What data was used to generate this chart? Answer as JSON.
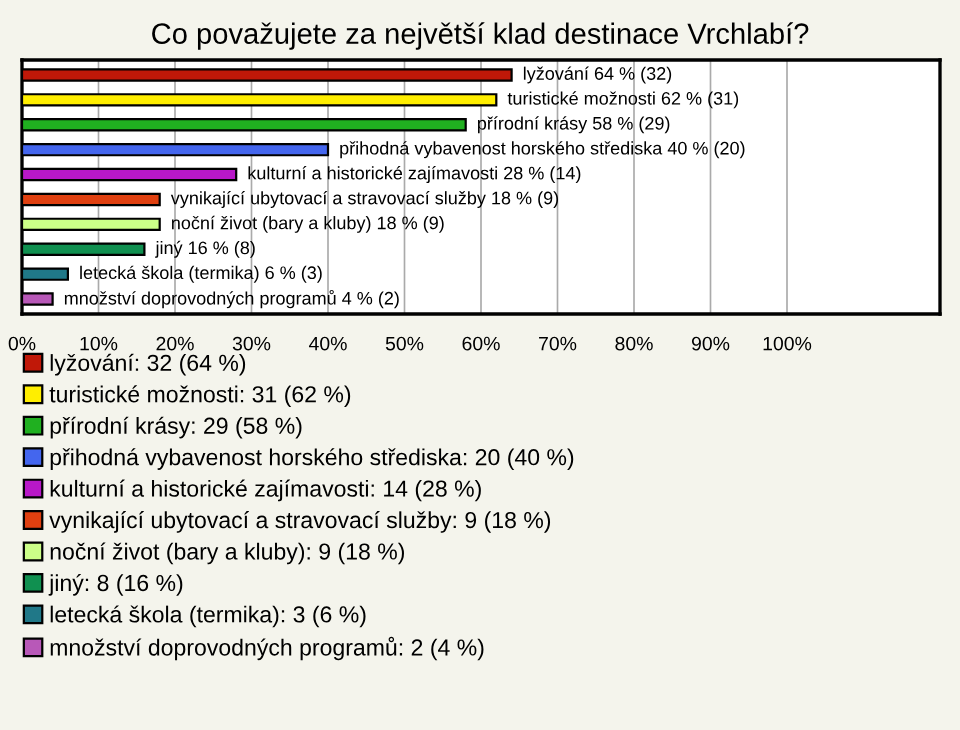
{
  "chart_data": {
    "type": "bar",
    "orientation": "horizontal",
    "title": "Co považujete za největší klad destinace Vrchlabí?",
    "categories": [
      null,
      null,
      null,
      null,
      null,
      null,
      null,
      null,
      null,
      null
    ],
    "series": [
      {
        "name": "lyžování: 32 (64 %)",
        "color": "#c01808",
        "values": [
          64,
          null,
          null,
          null,
          null,
          null,
          null,
          null,
          null,
          null
        ],
        "value_labels": [
          "lyžování 64 % (32)",
          null,
          null,
          null,
          null,
          null,
          null,
          null,
          null,
          null
        ]
      },
      {
        "name": "turistické možnosti: 31 (62 %)",
        "color": "#ffee00",
        "values": [
          null,
          62,
          null,
          null,
          null,
          null,
          null,
          null,
          null,
          null
        ],
        "value_labels": [
          null,
          "turistické možnosti 62 % (31)",
          null,
          null,
          null,
          null,
          null,
          null,
          null,
          null
        ]
      },
      {
        "name": "přírodní krásy: 29 (58 %)",
        "color": "#20b020",
        "values": [
          null,
          null,
          58,
          null,
          null,
          null,
          null,
          null,
          null,
          null
        ],
        "value_labels": [
          null,
          null,
          "přírodní krásy 58 % (29)",
          null,
          null,
          null,
          null,
          null,
          null,
          null
        ]
      },
      {
        "name": "přihodná vybavenost horského střediska: 20 (40 %)",
        "color": "#4466ee",
        "values": [
          null,
          null,
          null,
          40,
          null,
          null,
          null,
          null,
          null,
          null
        ],
        "value_labels": [
          null,
          null,
          null,
          "přihodná vybavenost horského střediska 40 % (20)",
          null,
          null,
          null,
          null,
          null,
          null
        ]
      },
      {
        "name": "kulturní a historické zajímavosti: 14 (28 %)",
        "color": "#b818c8",
        "values": [
          null,
          null,
          null,
          null,
          28,
          null,
          null,
          null,
          null,
          null
        ],
        "value_labels": [
          null,
          null,
          null,
          null,
          "kulturní a historické zajímavosti 28 % (14)",
          null,
          null,
          null,
          null,
          null
        ]
      },
      {
        "name": "vynikající ubytovací a stravovací služby: 9 (18 %)",
        "color": "#e04010",
        "values": [
          null,
          null,
          null,
          null,
          null,
          18,
          null,
          null,
          null,
          null
        ],
        "value_labels": [
          null,
          null,
          null,
          null,
          null,
          "vynikající ubytovací a stravovací služby 18 % (9)",
          null,
          null,
          null,
          null
        ]
      },
      {
        "name": "noční život (bary a kluby): 9 (18 %)",
        "color": "#ccff88",
        "values": [
          null,
          null,
          null,
          null,
          null,
          null,
          18,
          null,
          null,
          null
        ],
        "value_labels": [
          null,
          null,
          null,
          null,
          null,
          null,
          "noční život (bary a kluby) 18 % (9)",
          null,
          null,
          null
        ]
      },
      {
        "name": "jiný: 8 (16 %)",
        "color": "#109050",
        "values": [
          null,
          null,
          null,
          null,
          null,
          null,
          null,
          16,
          null,
          null
        ],
        "value_labels": [
          null,
          null,
          null,
          null,
          null,
          null,
          null,
          "jiný 16 % (8)",
          null,
          null
        ]
      },
      {
        "name": "letecká škola (termika): 3 (6 %)",
        "color": "#207888",
        "values": [
          null,
          null,
          null,
          null,
          null,
          null,
          null,
          null,
          6,
          null
        ],
        "value_labels": [
          null,
          null,
          null,
          null,
          null,
          null,
          null,
          null,
          "letecká škola (termika) 6 % (3)",
          null
        ]
      },
      {
        "name": "množství doprovodných programů: 2 (4 %)",
        "color": "#b858b8",
        "values": [
          null,
          null,
          null,
          null,
          null,
          null,
          null,
          null,
          null,
          4
        ],
        "value_labels": [
          null,
          null,
          null,
          null,
          null,
          null,
          null,
          null,
          null,
          "množství doprovodných programů 4 % (2)"
        ]
      }
    ],
    "xlim": [
      0,
      120
    ],
    "xticks": [
      {
        "value": 0,
        "label": "0%"
      },
      {
        "value": 10,
        "label": "10%"
      },
      {
        "value": 20,
        "label": "20%"
      },
      {
        "value": 30,
        "label": "30%"
      },
      {
        "value": 40,
        "label": "40%"
      },
      {
        "value": 50,
        "label": "50%"
      },
      {
        "value": 60,
        "label": "60%"
      },
      {
        "value": 70,
        "label": "70%"
      },
      {
        "value": 80,
        "label": "80%"
      },
      {
        "value": 90,
        "label": "90%"
      },
      {
        "value": 100,
        "label": "100%"
      }
    ],
    "grid": "x",
    "legend": "bottom",
    "tick_labels": "x"
  }
}
